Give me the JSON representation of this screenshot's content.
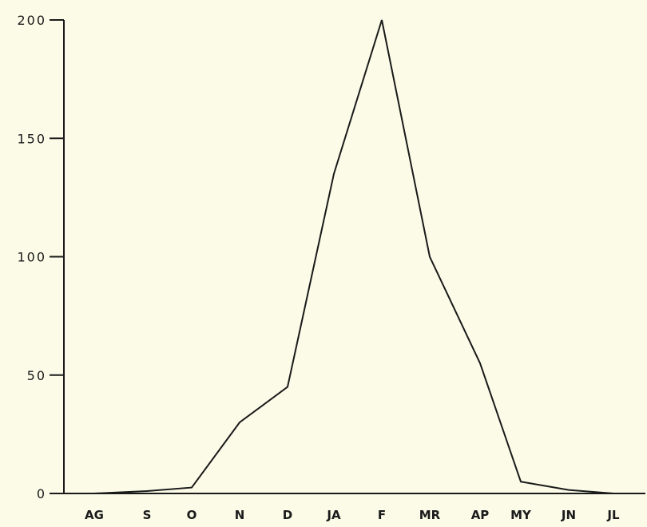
{
  "chart_data": {
    "type": "line",
    "title": "",
    "xlabel": "",
    "ylabel": "",
    "categories": [
      "AG",
      "S",
      "O",
      "N",
      "D",
      "JA",
      "F",
      "MR",
      "AP",
      "MY",
      "JN",
      "JL"
    ],
    "series": [
      {
        "values": [
          0,
          1,
          2.5,
          30,
          45,
          135,
          200,
          100,
          55,
          5,
          1.5,
          0
        ]
      }
    ],
    "y_ticks": [
      "200",
      "150",
      "100",
      "50",
      "0"
    ],
    "ylim": [
      0,
      200
    ],
    "grid": false,
    "colors": {
      "line": "#1a1a1a",
      "background": "#fbfbe8"
    }
  }
}
